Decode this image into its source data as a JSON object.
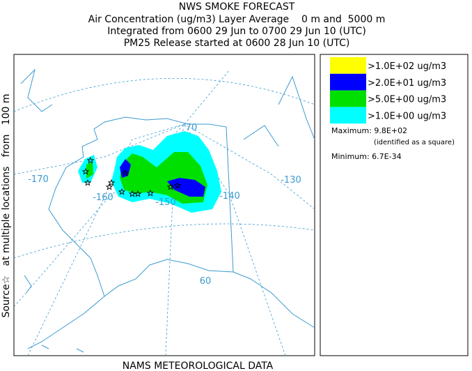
{
  "header": {
    "title": "NWS SMOKE FORECAST",
    "lines": [
      "Air Concentration (ug/m3) Layer Average    0 m and  5000 m",
      "Integrated from 0600 29 Jun to 0700 29 Jun 10 (UTC)",
      "PM25 Release started at 0600 28 Jun 10 (UTC)"
    ]
  },
  "map": {
    "source_label": "Source☆   at multiple locations   from   100 m",
    "footer": "NAMS METEOROLOGICAL DATA",
    "grid_labels": [
      "-170",
      "-160",
      "-150",
      "-140",
      "-130",
      "70",
      "60"
    ]
  },
  "legend": {
    "entries": [
      {
        "label": ">1.0E+02 ug/m3",
        "color": "#ffff00"
      },
      {
        "label": ">2.0E+01 ug/m3",
        "color": "#0000ff"
      },
      {
        "label": ">5.0E+00 ug/m3",
        "color": "#00e000"
      },
      {
        "label": ">1.0E+00 ug/m3",
        "color": "#00ffff"
      }
    ],
    "maximum": "Maximum: 9.8E+02",
    "maximum_note": "(identified as a square)",
    "minimum": "Minimum: 6.7E-34"
  }
}
